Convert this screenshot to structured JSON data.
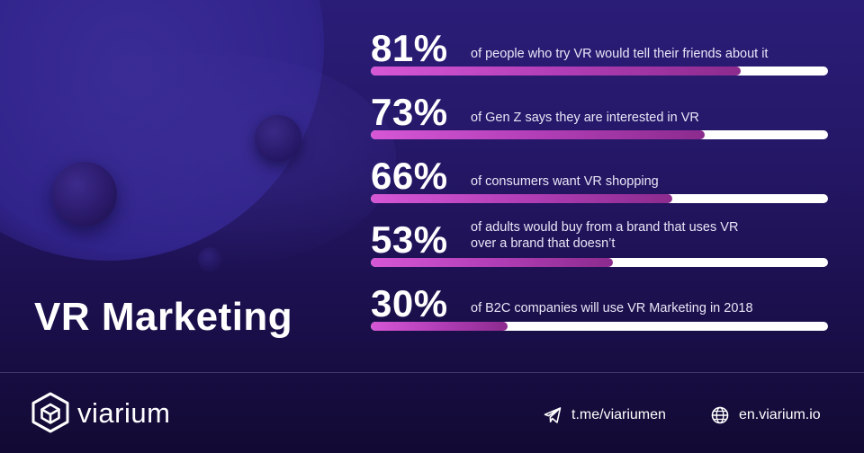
{
  "title": "VR Marketing",
  "colors": {
    "background": "#24176a",
    "bar_fill_start": "#d657d6",
    "bar_fill_end": "#8c2b8e",
    "bar_track": "#ffffff",
    "text": "#ffffff"
  },
  "stats": [
    {
      "percent_label": "81%",
      "value": 81,
      "text": "of people who try VR would tell their friends about it"
    },
    {
      "percent_label": "73%",
      "value": 73,
      "text": "of Gen Z says they are interested in VR"
    },
    {
      "percent_label": "66%",
      "value": 66,
      "text": "of consumers want VR shopping"
    },
    {
      "percent_label": "53%",
      "value": 53,
      "text": "of adults would buy from a brand that uses VR over a brand that doesn’t"
    },
    {
      "percent_label": "30%",
      "value": 30,
      "text": "of B2C companies  will use VR Marketing in 2018"
    }
  ],
  "footer": {
    "brand_name": "viarium",
    "brand_icon": "cube-logo-icon",
    "telegram": {
      "icon": "telegram-send-icon",
      "text": "t.me/viariumen"
    },
    "website": {
      "icon": "globe-icon",
      "text": "en.viarium.io"
    }
  }
}
